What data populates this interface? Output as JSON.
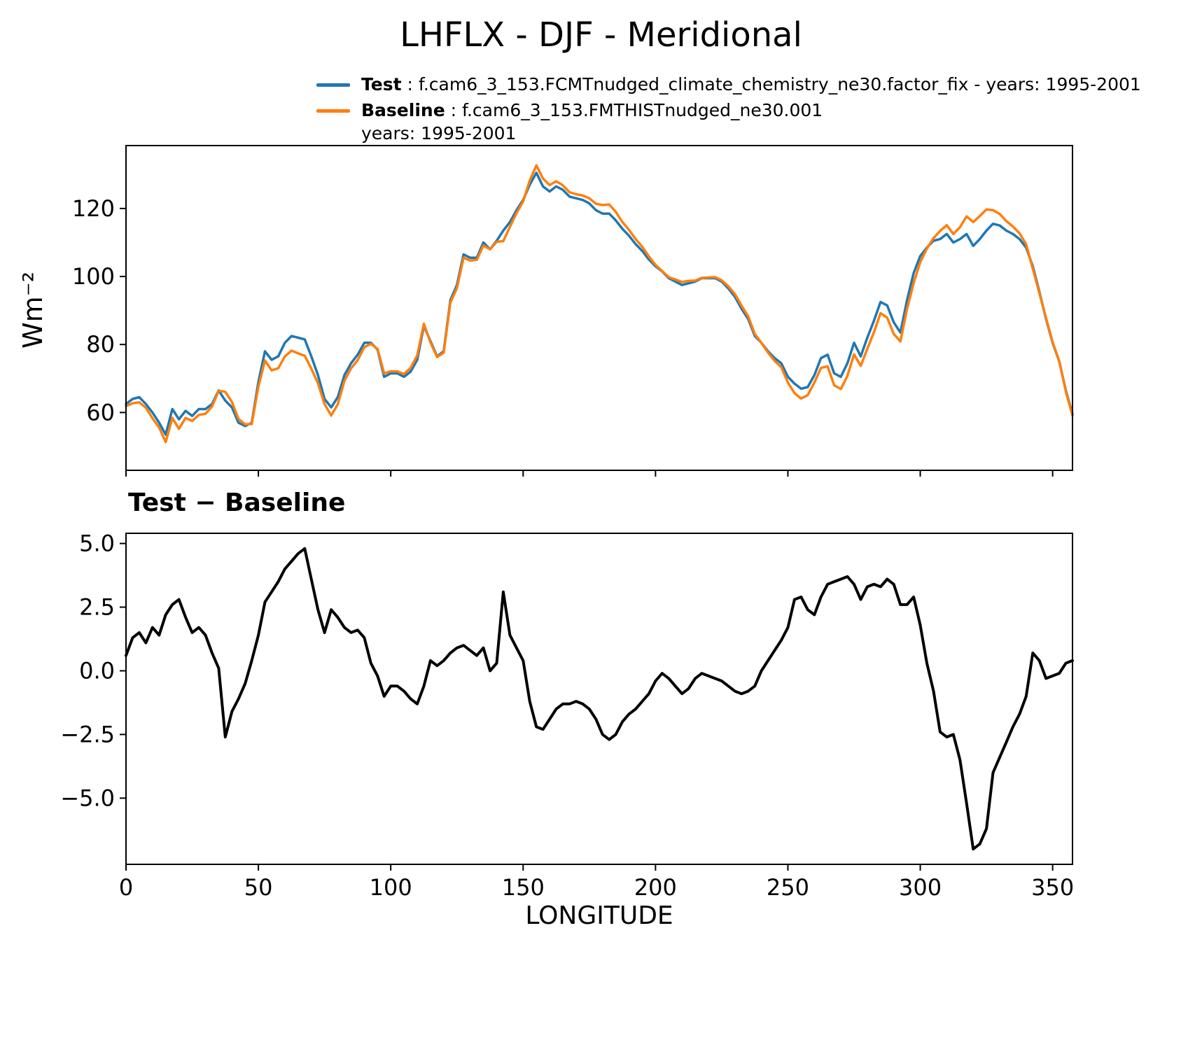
{
  "title": "LHFLX - DJF - Meridional",
  "colors": {
    "test": "#1f77b4",
    "baseline": "#ff7f0e",
    "diff": "#000000"
  },
  "legend": {
    "position": "upper center",
    "test_label": "Test",
    "test_text": " : f.cam6_3_153.FCMTnudged_climate_chemistry_ne30.factor_fix - years: 1995-2001",
    "baseline_label": "Baseline",
    "baseline_text": " : f.cam6_3_153.FMTHISTnudged_ne30.001",
    "baseline_text2": "years: 1995-2001"
  },
  "chart_data": [
    {
      "type": "line",
      "panel": "top",
      "title": "",
      "xlabel": "",
      "ylabel": "Wm⁻²",
      "grid": false,
      "legend_position": "above axes, upper center",
      "xlim": [
        0,
        357.5
      ],
      "ylim": [
        43,
        138.5
      ],
      "xticks": [
        0,
        50,
        100,
        150,
        200,
        250,
        300,
        350
      ],
      "xtick_labels": [],
      "yticks": [
        60,
        80,
        100,
        120
      ],
      "ytick_labels": [
        "60",
        "80",
        "100",
        "120"
      ],
      "x": [
        0,
        2.5,
        5,
        7.5,
        10,
        12.5,
        15,
        17.5,
        20,
        22.5,
        25,
        27.5,
        30,
        32.5,
        35,
        37.5,
        40,
        42.5,
        45,
        47.5,
        50,
        52.5,
        55,
        57.5,
        60,
        62.5,
        65,
        67.5,
        70,
        72.5,
        75,
        77.5,
        80,
        82.5,
        85,
        87.5,
        90,
        92.5,
        95,
        97.5,
        100,
        102.5,
        105,
        107.5,
        110,
        112.5,
        115,
        117.5,
        120,
        122.5,
        125,
        127.5,
        130,
        132.5,
        135,
        137.5,
        140,
        142.5,
        145,
        147.5,
        150,
        152.5,
        155,
        157.5,
        160,
        162.5,
        165,
        167.5,
        170,
        172.5,
        175,
        177.5,
        180,
        182.5,
        185,
        187.5,
        190,
        192.5,
        195,
        197.5,
        200,
        202.5,
        205,
        207.5,
        210,
        212.5,
        215,
        217.5,
        220,
        222.5,
        225,
        227.5,
        230,
        232.5,
        235,
        237.5,
        240,
        242.5,
        245,
        247.5,
        250,
        252.5,
        255,
        257.5,
        260,
        262.5,
        265,
        267.5,
        270,
        272.5,
        275,
        277.5,
        280,
        282.5,
        285,
        287.5,
        290,
        292.5,
        295,
        297.5,
        300,
        302.5,
        305,
        307.5,
        310,
        312.5,
        315,
        317.5,
        320,
        322.5,
        325,
        327.5,
        330,
        332.5,
        335,
        337.5,
        340,
        342.5,
        345,
        347.5,
        350,
        352.5,
        355,
        357.5
      ],
      "series": [
        {
          "name": "Test",
          "color": "#1f77b4",
          "values": [
            62.5,
            64,
            64.5,
            62.5,
            60,
            57,
            53.5,
            61,
            58,
            60.5,
            59,
            61,
            61,
            62.5,
            66.5,
            63.5,
            61.5,
            57,
            56,
            57,
            69,
            78,
            75.5,
            76.5,
            80.5,
            82.5,
            82,
            81.5,
            76.5,
            71,
            64,
            61.5,
            64.5,
            71,
            74.5,
            77,
            80.5,
            80.5,
            78.5,
            70.5,
            71.5,
            71.5,
            70.5,
            72,
            75.5,
            85.5,
            81,
            76.5,
            78,
            93,
            97.5,
            106.5,
            105.5,
            105.5,
            110,
            108,
            110.5,
            113.5,
            116,
            119.5,
            122.5,
            127,
            130.5,
            126.5,
            125,
            126.5,
            125.5,
            123.5,
            123,
            122.5,
            121.5,
            119.5,
            118.5,
            118.5,
            116.5,
            114,
            112,
            109.5,
            107.5,
            105,
            103,
            101.5,
            99.5,
            98.5,
            97.5,
            98,
            98.5,
            99.5,
            99.5,
            99.5,
            98.5,
            96.5,
            94,
            90.5,
            87.5,
            82.5,
            80.5,
            78,
            76,
            74.5,
            70.5,
            68.5,
            67,
            67.5,
            71,
            76,
            77,
            71.5,
            70.5,
            74.5,
            80.5,
            76.5,
            82,
            87,
            92.5,
            91.5,
            86.5,
            83.5,
            93,
            101,
            106,
            108.5,
            110.5,
            111,
            112.5,
            110,
            111,
            112.5,
            109,
            111,
            113.5,
            115.5,
            115,
            113.5,
            112.5,
            111,
            108.5,
            103,
            95.5,
            87.5,
            80.5,
            75,
            66.5,
            59.5
          ]
        },
        {
          "name": "Baseline",
          "color": "#ff7f0e",
          "values": [
            61.9,
            62.7,
            63.0,
            61.4,
            58.3,
            55.6,
            51.3,
            58.4,
            55.2,
            58.4,
            57.5,
            59.3,
            59.6,
            61.8,
            66.4,
            66.1,
            63.1,
            58.1,
            56.5,
            56.6,
            67.6,
            75.3,
            72.4,
            73.0,
            76.5,
            78.2,
            77.4,
            76.7,
            72.9,
            68.6,
            62.5,
            59.1,
            62.4,
            69.3,
            73.0,
            75.4,
            79.2,
            80.2,
            78.7,
            71.5,
            72.1,
            72.1,
            71.3,
            73.1,
            76.8,
            86.1,
            80.6,
            76.3,
            77.6,
            92.3,
            96.6,
            105.5,
            104.7,
            104.9,
            109.1,
            108.0,
            110.2,
            110.4,
            114.6,
            118.6,
            122.1,
            128.2,
            132.7,
            128.8,
            126.9,
            128.0,
            126.8,
            124.8,
            124.2,
            123.8,
            123.0,
            121.4,
            121.0,
            121.2,
            119.0,
            116.0,
            113.7,
            111.0,
            108.7,
            105.9,
            103.4,
            101.6,
            99.8,
            99.1,
            98.4,
            98.7,
            98.8,
            99.6,
            99.7,
            99.8,
            98.9,
            97.1,
            94.8,
            91.4,
            88.3,
            83.1,
            80.5,
            77.6,
            75.2,
            73.3,
            68.8,
            65.7,
            64.1,
            65.1,
            68.8,
            73.1,
            73.6,
            68.0,
            66.9,
            70.8,
            77.1,
            73.7,
            78.7,
            83.6,
            89.2,
            87.9,
            83.1,
            80.9,
            90.4,
            98.1,
            104.2,
            108.2,
            111.3,
            113.4,
            115.1,
            112.5,
            114.5,
            117.7,
            116.0,
            117.8,
            119.7,
            119.5,
            118.4,
            116.3,
            114.7,
            112.7,
            109.5,
            102.3,
            95.1,
            87.8,
            80.7,
            75.1,
            66.2,
            59.1
          ]
        }
      ]
    },
    {
      "type": "line",
      "panel": "bottom",
      "title": "Test − Baseline",
      "xlabel": "LONGITUDE",
      "ylabel": "",
      "grid": false,
      "xlim": [
        0,
        357.5
      ],
      "ylim": [
        -7.6,
        5.4
      ],
      "xticks": [
        0,
        50,
        100,
        150,
        200,
        250,
        300,
        350
      ],
      "xtick_labels": [
        "0",
        "50",
        "100",
        "150",
        "200",
        "250",
        "300",
        "350"
      ],
      "yticks": [
        5.0,
        2.5,
        0.0,
        -2.5,
        -5.0
      ],
      "ytick_labels": [
        "5.0",
        "2.5",
        "0.0",
        "−2.5",
        "−5.0"
      ],
      "x": [
        0,
        2.5,
        5,
        7.5,
        10,
        12.5,
        15,
        17.5,
        20,
        22.5,
        25,
        27.5,
        30,
        32.5,
        35,
        37.5,
        40,
        42.5,
        45,
        47.5,
        50,
        52.5,
        55,
        57.5,
        60,
        62.5,
        65,
        67.5,
        70,
        72.5,
        75,
        77.5,
        80,
        82.5,
        85,
        87.5,
        90,
        92.5,
        95,
        97.5,
        100,
        102.5,
        105,
        107.5,
        110,
        112.5,
        115,
        117.5,
        120,
        122.5,
        125,
        127.5,
        130,
        132.5,
        135,
        137.5,
        140,
        142.5,
        145,
        147.5,
        150,
        152.5,
        155,
        157.5,
        160,
        162.5,
        165,
        167.5,
        170,
        172.5,
        175,
        177.5,
        180,
        182.5,
        185,
        187.5,
        190,
        192.5,
        195,
        197.5,
        200,
        202.5,
        205,
        207.5,
        210,
        212.5,
        215,
        217.5,
        220,
        222.5,
        225,
        227.5,
        230,
        232.5,
        235,
        237.5,
        240,
        242.5,
        245,
        247.5,
        250,
        252.5,
        255,
        257.5,
        260,
        262.5,
        265,
        267.5,
        270,
        272.5,
        275,
        277.5,
        280,
        282.5,
        285,
        287.5,
        290,
        292.5,
        295,
        297.5,
        300,
        302.5,
        305,
        307.5,
        310,
        312.5,
        315,
        317.5,
        320,
        322.5,
        325,
        327.5,
        330,
        332.5,
        335,
        337.5,
        340,
        342.5,
        345,
        347.5,
        350,
        352.5,
        355,
        357.5
      ],
      "series": [
        {
          "name": "Test − Baseline",
          "color": "#000000",
          "values": [
            0.6,
            1.3,
            1.5,
            1.1,
            1.7,
            1.4,
            2.2,
            2.6,
            2.8,
            2.1,
            1.5,
            1.7,
            1.4,
            0.7,
            0.1,
            -2.6,
            -1.6,
            -1.1,
            -0.5,
            0.4,
            1.4,
            2.7,
            3.1,
            3.5,
            4.0,
            4.3,
            4.6,
            4.8,
            3.6,
            2.4,
            1.5,
            2.4,
            2.1,
            1.7,
            1.5,
            1.6,
            1.3,
            0.3,
            -0.2,
            -1.0,
            -0.6,
            -0.6,
            -0.8,
            -1.1,
            -1.3,
            -0.6,
            0.4,
            0.2,
            0.4,
            0.7,
            0.9,
            1.0,
            0.8,
            0.6,
            0.9,
            0.0,
            0.3,
            3.1,
            1.4,
            0.9,
            0.4,
            -1.2,
            -2.2,
            -2.3,
            -1.9,
            -1.5,
            -1.3,
            -1.3,
            -1.2,
            -1.3,
            -1.5,
            -1.9,
            -2.5,
            -2.7,
            -2.5,
            -2.0,
            -1.7,
            -1.5,
            -1.2,
            -0.9,
            -0.4,
            -0.1,
            -0.3,
            -0.6,
            -0.9,
            -0.7,
            -0.3,
            -0.1,
            -0.2,
            -0.3,
            -0.4,
            -0.6,
            -0.8,
            -0.9,
            -0.8,
            -0.6,
            0.0,
            0.4,
            0.8,
            1.2,
            1.7,
            2.8,
            2.9,
            2.4,
            2.2,
            2.9,
            3.4,
            3.5,
            3.6,
            3.7,
            3.4,
            2.8,
            3.3,
            3.4,
            3.3,
            3.6,
            3.4,
            2.6,
            2.6,
            2.9,
            1.8,
            0.3,
            -0.8,
            -2.4,
            -2.6,
            -2.5,
            -3.5,
            -5.2,
            -7.0,
            -6.8,
            -6.2,
            -4.0,
            -3.4,
            -2.8,
            -2.2,
            -1.7,
            -1.0,
            0.7,
            0.4,
            -0.3,
            -0.2,
            -0.1,
            0.3,
            0.4
          ]
        }
      ]
    }
  ]
}
